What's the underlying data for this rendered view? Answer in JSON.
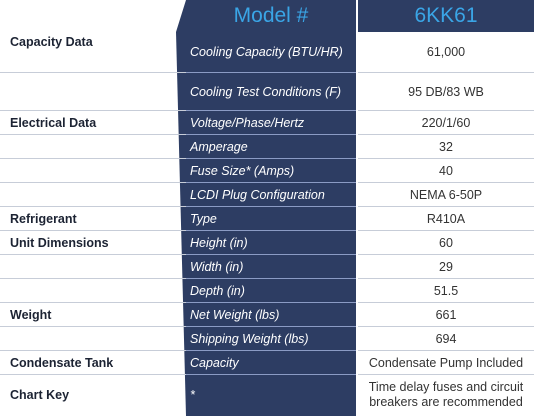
{
  "header": {
    "model_label": "Model #",
    "model_value": "6KK61"
  },
  "rows": [
    {
      "category": "Capacity Data",
      "spec": "Cooling Capacity (BTU/HR)",
      "value": "61,000"
    },
    {
      "category": "",
      "spec": "Cooling Test Conditions (F)",
      "value": "95 DB/83 WB"
    },
    {
      "category": "Electrical Data",
      "spec": "Voltage/Phase/Hertz",
      "value": "220/1/60"
    },
    {
      "category": "",
      "spec": "Amperage",
      "value": "32"
    },
    {
      "category": "",
      "spec": "Fuse Size* (Amps)",
      "value": "40"
    },
    {
      "category": "",
      "spec": "LCDI Plug Configuration",
      "value": "NEMA 6-50P"
    },
    {
      "category": "Refrigerant",
      "spec": "Type",
      "value": "R410A"
    },
    {
      "category": "Unit Dimensions",
      "spec": "Height (in)",
      "value": "60"
    },
    {
      "category": "",
      "spec": "Width (in)",
      "value": "29"
    },
    {
      "category": "",
      "spec": "Depth (in)",
      "value": "51.5"
    },
    {
      "category": "Weight",
      "spec": "Net Weight (lbs)",
      "value": "661"
    },
    {
      "category": "",
      "spec": "Shipping Weight (lbs)",
      "value": "694"
    },
    {
      "category": "Condensate Tank",
      "spec": "Capacity",
      "value": "Condensate Pump Included"
    },
    {
      "category": "Chart Key",
      "spec": "*",
      "value": "Time delay fuses and circuit breakers are recommended"
    }
  ],
  "colors": {
    "spec_band": "#2d3d63",
    "header_text": "#3aa5e6",
    "category_text": "#1c2333",
    "value_text": "#333333"
  }
}
